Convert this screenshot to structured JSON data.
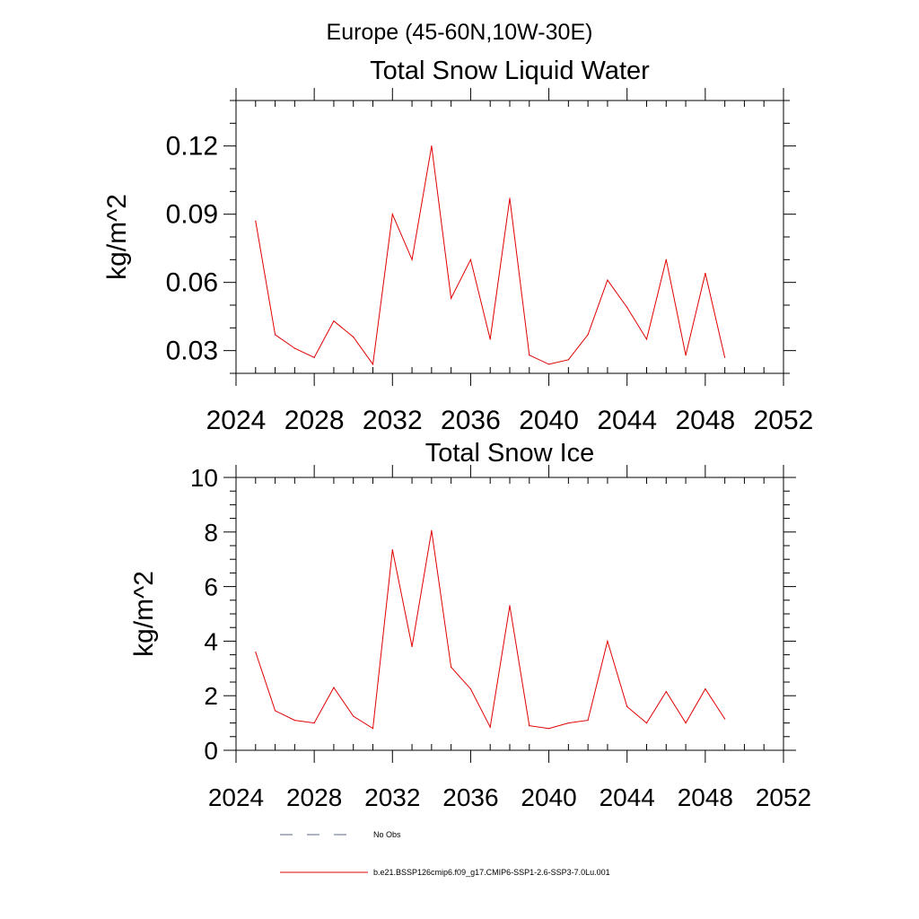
{
  "figure": {
    "main_title": "Europe (45-60N,10W-30E)"
  },
  "chart_data": [
    {
      "type": "line",
      "title": "Total Snow Liquid Water",
      "xlabel": "",
      "ylabel": "kg/m^2",
      "xlim": [
        2024,
        2052
      ],
      "ylim": [
        0.02,
        0.14
      ],
      "x_ticks": [
        2024,
        2028,
        2032,
        2036,
        2040,
        2044,
        2048,
        2052
      ],
      "x_tick_labels": [
        "2024",
        "2028",
        "2032",
        "2036",
        "2040",
        "2044",
        "2048",
        "2052"
      ],
      "y_ticks": [
        0.03,
        0.06,
        0.09,
        0.12
      ],
      "y_tick_labels": [
        "0.03",
        "0.06",
        "0.09",
        "0.12"
      ],
      "grid": false,
      "series": [
        {
          "name": "b.e21.BSSP126cmip6.f09_g17.CMIP6-SSP1-2.6-SSP3-7.0Lu.001",
          "color": "#e00000",
          "x": [
            2025,
            2026,
            2027,
            2028,
            2029,
            2030,
            2031,
            2032,
            2033,
            2034,
            2035,
            2036,
            2037,
            2038,
            2039,
            2040,
            2041,
            2042,
            2043,
            2044,
            2045,
            2046,
            2047,
            2048,
            2049
          ],
          "y": [
            0.087,
            0.037,
            0.031,
            0.027,
            0.043,
            0.036,
            0.024,
            0.09,
            0.07,
            0.12,
            0.053,
            0.07,
            0.035,
            0.097,
            0.028,
            0.024,
            0.026,
            0.037,
            0.061,
            0.049,
            0.035,
            0.07,
            0.028,
            0.064,
            0.027
          ]
        }
      ]
    },
    {
      "type": "line",
      "title": "Total Snow Ice",
      "xlabel": "",
      "ylabel": "kg/m^2",
      "xlim": [
        2024,
        2052
      ],
      "ylim": [
        0,
        10
      ],
      "x_ticks": [
        2024,
        2028,
        2032,
        2036,
        2040,
        2044,
        2048,
        2052
      ],
      "x_tick_labels": [
        "2024",
        "2028",
        "2032",
        "2036",
        "2040",
        "2044",
        "2048",
        "2052"
      ],
      "y_ticks": [
        0,
        2,
        4,
        6,
        8,
        10
      ],
      "y_tick_labels": [
        "0",
        "2",
        "4",
        "6",
        "8",
        "10"
      ],
      "grid": false,
      "series": [
        {
          "name": "b.e21.BSSP126cmip6.f09_g17.CMIP6-SSP1-2.6-SSP3-7.0Lu.001",
          "color": "#e00000",
          "x": [
            2025,
            2026,
            2027,
            2028,
            2029,
            2030,
            2031,
            2032,
            2033,
            2034,
            2035,
            2036,
            2037,
            2038,
            2039,
            2040,
            2041,
            2042,
            2043,
            2044,
            2045,
            2046,
            2047,
            2048,
            2049
          ],
          "y": [
            3.6,
            1.45,
            1.1,
            1.0,
            2.3,
            1.25,
            0.8,
            7.35,
            3.8,
            8.05,
            3.05,
            2.25,
            0.85,
            5.3,
            0.9,
            0.8,
            1.0,
            1.1,
            4.0,
            1.6,
            1.0,
            2.15,
            1.0,
            2.25,
            1.15
          ]
        }
      ]
    }
  ],
  "legend": {
    "placement": "bottom",
    "items": [
      {
        "label": "No Obs",
        "color": "#5a6a8a",
        "style": "dashed"
      },
      {
        "label": "b.e21.BSSP126cmip6.f09_g17.CMIP6-SSP1-2.6-SSP3-7.0Lu.001",
        "color": "#e00000",
        "style": "solid"
      }
    ]
  }
}
